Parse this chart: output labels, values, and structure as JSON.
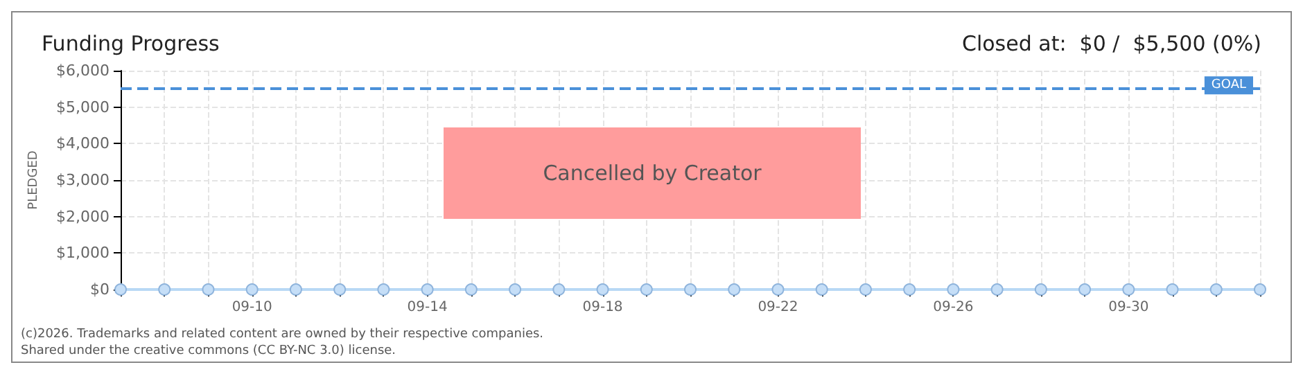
{
  "chart_data": {
    "type": "line",
    "title": "Funding Progress",
    "subtitle": "Closed at:  $0 /  $5,500 (0%)",
    "ylabel": "PLEDGED",
    "categories": [
      null,
      null,
      null,
      "09-10",
      null,
      null,
      null,
      "09-14",
      null,
      null,
      null,
      "09-18",
      null,
      null,
      null,
      "09-22",
      null,
      null,
      null,
      "09-26",
      null,
      null,
      null,
      "09-30",
      null,
      null,
      null
    ],
    "series": [
      {
        "color": "#b8d8f5",
        "values": [
          0,
          0,
          0,
          0,
          0,
          0,
          0,
          0,
          0,
          0,
          0,
          0,
          0,
          0,
          0,
          0,
          0,
          0,
          0,
          0,
          0,
          0,
          0,
          0,
          0,
          0,
          0
        ]
      }
    ],
    "ylim": [
      0,
      6000
    ],
    "yticks": [
      {
        "value": 0,
        "label": "$0"
      },
      {
        "value": 1000,
        "label": "$1,000"
      },
      {
        "value": 2000,
        "label": "$2,000"
      },
      {
        "value": 3000,
        "label": "$3,000"
      },
      {
        "value": 4000,
        "label": "$4,000"
      },
      {
        "value": 5000,
        "label": "$5,000"
      },
      {
        "value": 6000,
        "label": "$6,000"
      }
    ],
    "grid": true,
    "marker": "circle",
    "line_style": "solid",
    "ref_lines": [
      {
        "axis": "y",
        "value": 5500,
        "label": "GOAL",
        "color": "#4a90d9",
        "line_style": "dashed"
      }
    ],
    "annotations": [
      "Cancelled by Creator",
      "(c)2026. Trademarks and related content are owned by their respective companies.",
      "Shared under the creative commons (CC BY-NC 3.0) license."
    ]
  }
}
